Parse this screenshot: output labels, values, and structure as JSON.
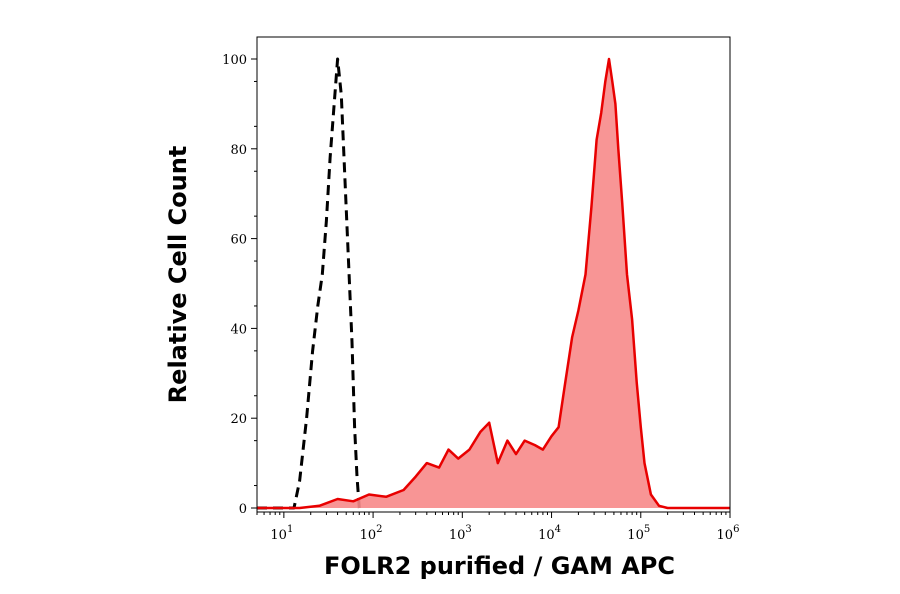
{
  "chart_data": {
    "type": "histogram",
    "title": "",
    "xlabel": "FOLR2 purified / GAM APC",
    "ylabel": "Relative Cell Count",
    "x_scale": "log",
    "xlim": [
      5,
      1000000
    ],
    "ylim": [
      0,
      100
    ],
    "x_ticks": [
      {
        "value": 10,
        "base": "10",
        "exp": "1"
      },
      {
        "value": 100,
        "base": "10",
        "exp": "2"
      },
      {
        "value": 1000,
        "base": "10",
        "exp": "3"
      },
      {
        "value": 10000,
        "base": "10",
        "exp": "4"
      },
      {
        "value": 100000,
        "base": "10",
        "exp": "5"
      },
      {
        "value": 1000000,
        "base": "10",
        "exp": "6"
      }
    ],
    "y_ticks": [
      {
        "value": 0,
        "label": "0"
      },
      {
        "value": 20,
        "label": "20"
      },
      {
        "value": 40,
        "label": "40"
      },
      {
        "value": 60,
        "label": "60"
      },
      {
        "value": 80,
        "label": "80"
      },
      {
        "value": 100,
        "label": "100"
      }
    ],
    "grid": false,
    "legend": "none",
    "series": [
      {
        "style": "dashed",
        "color": "#000000",
        "fill": "none",
        "x": [
          5,
          13,
          15,
          18,
          21,
          24,
          27,
          30,
          33,
          36,
          40,
          44,
          48,
          53,
          58,
          62,
          66,
          70
        ],
        "y": [
          0,
          0,
          6,
          20,
          35,
          45,
          52,
          64,
          78,
          88,
          100,
          92,
          75,
          55,
          37,
          18,
          7,
          0
        ]
      },
      {
        "style": "solid",
        "color": "#e80000",
        "fill": "#f78a8a",
        "x": [
          5,
          15,
          25,
          40,
          60,
          90,
          140,
          220,
          300,
          400,
          550,
          700,
          900,
          1200,
          1600,
          2000,
          2500,
          3200,
          4000,
          5000,
          6500,
          8000,
          10000,
          12000,
          14000,
          17000,
          20000,
          24000,
          28000,
          32000,
          36000,
          40000,
          44000,
          48000,
          52000,
          56000,
          62000,
          70000,
          80000,
          90000,
          100000,
          110000,
          130000,
          160000,
          200000,
          300000,
          500000,
          1000000
        ],
        "y": [
          0,
          0,
          0.5,
          2,
          1.5,
          3,
          2.5,
          4,
          7,
          10,
          9,
          13,
          11,
          13,
          17,
          19,
          10,
          15,
          12,
          15,
          14,
          13,
          16,
          18,
          27,
          38,
          44,
          52,
          67,
          82,
          88,
          95,
          100,
          95,
          90,
          80,
          68,
          52,
          42,
          28,
          18,
          10,
          3,
          0.5,
          0,
          0,
          0,
          0
        ]
      }
    ]
  }
}
